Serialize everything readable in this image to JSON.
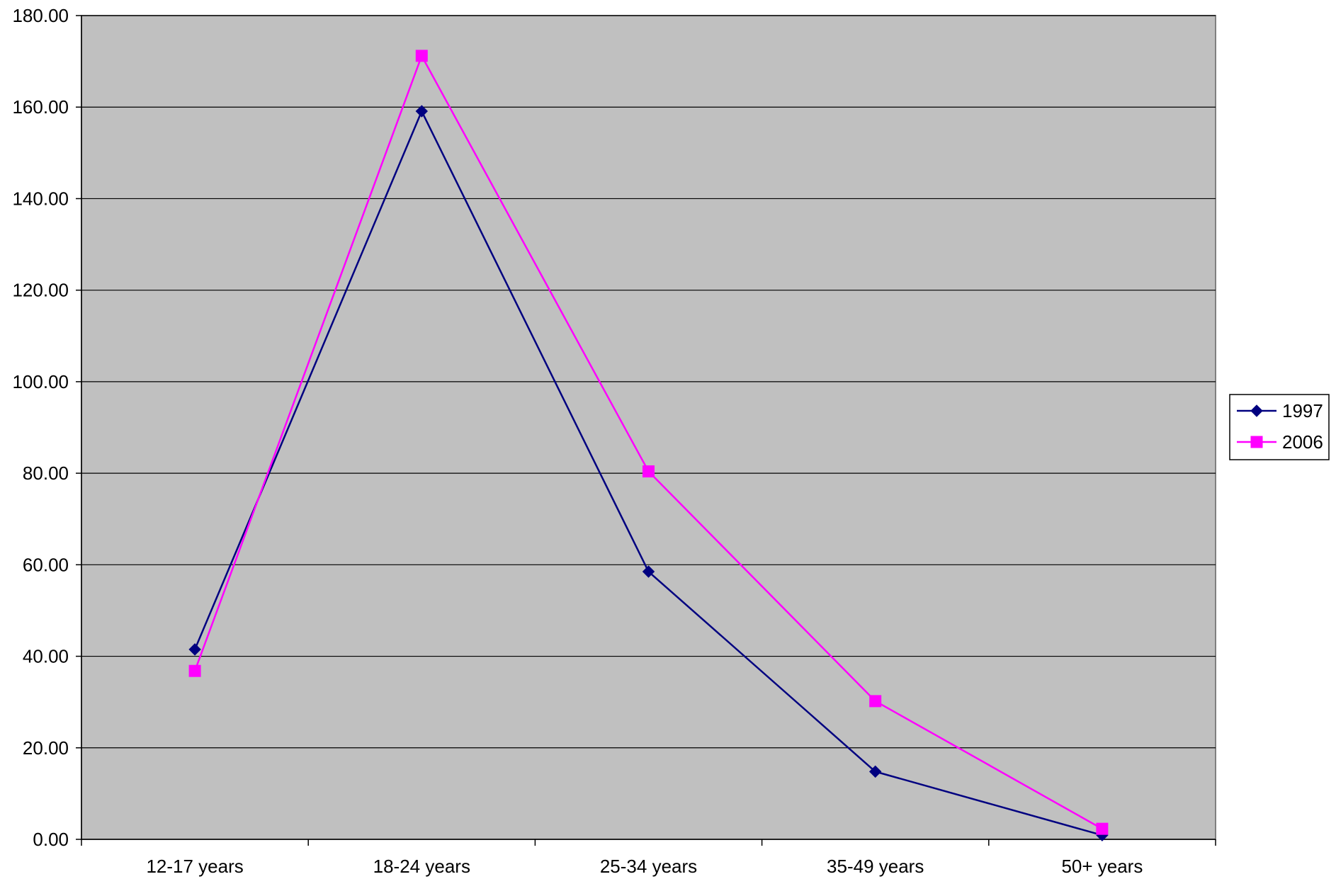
{
  "chart_data": {
    "type": "line",
    "categories": [
      "12-17 years",
      "18-24 years",
      "25-34 years",
      "35-49 years",
      "50+ years"
    ],
    "series": [
      {
        "name": "1997",
        "values": [
          41.5,
          159.1,
          58.5,
          14.8,
          0.9
        ],
        "color": "#000080",
        "marker": "diamond"
      },
      {
        "name": "2006",
        "values": [
          36.8,
          171.2,
          80.4,
          30.2,
          2.3
        ],
        "color": "#FF00FF",
        "marker": "square"
      }
    ],
    "ylim": [
      0,
      180
    ],
    "yticks": [
      "0.00",
      "20.00",
      "40.00",
      "60.00",
      "80.00",
      "100.00",
      "120.00",
      "140.00",
      "160.00",
      "180.00"
    ],
    "ytick_values": [
      0,
      20,
      40,
      60,
      80,
      100,
      120,
      140,
      160,
      180
    ],
    "grid": true,
    "plot_background": "#C0C0C0",
    "gridline_color": "#000000",
    "legend_placement": "right"
  }
}
